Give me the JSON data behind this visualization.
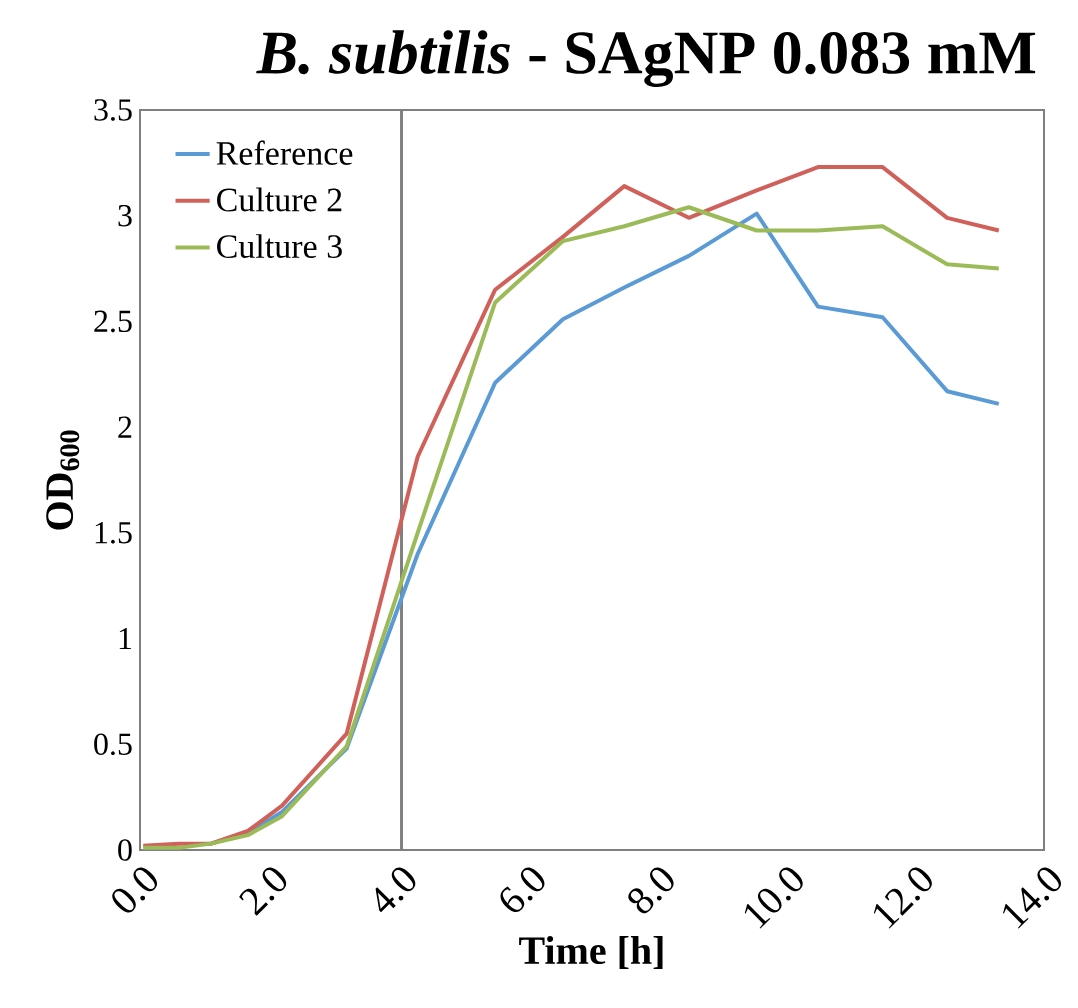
{
  "chart_data": {
    "type": "line",
    "title": "*B. subtilis* - SAgNP 0.083 mM",
    "xlabel": "Time [h]",
    "ylabel": "OD$_{600}$",
    "x": [
      0.05,
      0.6,
      1.1,
      1.67,
      2.2,
      3.2,
      4.3,
      5.5,
      6.55,
      7.5,
      8.5,
      9.55,
      10.5,
      11.5,
      12.5,
      13.3
    ],
    "series": [
      {
        "name": "Reference",
        "color": "#5b9bd5",
        "values": [
          null,
          null,
          0.03,
          0.08,
          0.18,
          0.48,
          1.4,
          2.21,
          2.51,
          2.66,
          2.81,
          3.01,
          2.57,
          2.52,
          2.17,
          2.11
        ]
      },
      {
        "name": "Culture 2",
        "color": "#d0605a",
        "values": [
          0.02,
          0.03,
          0.03,
          0.09,
          0.21,
          0.55,
          1.86,
          2.65,
          2.9,
          3.14,
          2.99,
          3.12,
          3.23,
          3.23,
          2.99,
          2.93
        ]
      },
      {
        "name": "Culture 3",
        "color": "#9bbb59",
        "values": [
          0.01,
          0.01,
          0.03,
          0.07,
          0.16,
          0.49,
          1.5,
          2.59,
          2.88,
          2.95,
          3.04,
          2.93,
          2.93,
          2.95,
          2.77,
          2.75
        ]
      }
    ],
    "xlim": [
      0,
      14
    ],
    "ylim": [
      0,
      3.5
    ],
    "xticks": [
      {
        "value": 0,
        "label": "0.0"
      },
      {
        "value": 2,
        "label": "2.0"
      },
      {
        "value": 4,
        "label": "4.0"
      },
      {
        "value": 6,
        "label": "6.0"
      },
      {
        "value": 8,
        "label": "8.0"
      },
      {
        "value": 10,
        "label": "10.0"
      },
      {
        "value": 12,
        "label": "12.0"
      },
      {
        "value": 14,
        "label": "14.0"
      }
    ],
    "yticks": [
      0,
      0.5,
      1,
      1.5,
      2,
      2.5,
      3,
      3.5
    ],
    "ref_lines": [
      {
        "axis": "x",
        "value": 4.05,
        "color": "#808080"
      }
    ],
    "legend": "top left",
    "marker": "none",
    "line_style": "solid",
    "grid": false
  }
}
